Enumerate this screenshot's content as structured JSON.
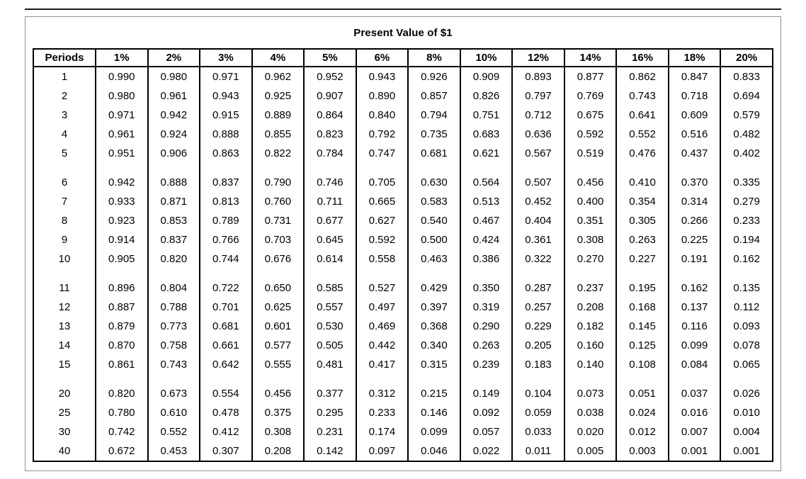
{
  "title": "Present Value of $1",
  "table": {
    "column_headers": [
      "Periods",
      "1%",
      "2%",
      "3%",
      "4%",
      "5%",
      "6%",
      "8%",
      "10%",
      "12%",
      "14%",
      "16%",
      "18%",
      "20%"
    ],
    "row_groups": [
      [
        [
          "1",
          "0.990",
          "0.980",
          "0.971",
          "0.962",
          "0.952",
          "0.943",
          "0.926",
          "0.909",
          "0.893",
          "0.877",
          "0.862",
          "0.847",
          "0.833"
        ],
        [
          "2",
          "0.980",
          "0.961",
          "0.943",
          "0.925",
          "0.907",
          "0.890",
          "0.857",
          "0.826",
          "0.797",
          "0.769",
          "0.743",
          "0.718",
          "0.694"
        ],
        [
          "3",
          "0.971",
          "0.942",
          "0.915",
          "0.889",
          "0.864",
          "0.840",
          "0.794",
          "0.751",
          "0.712",
          "0.675",
          "0.641",
          "0.609",
          "0.579"
        ],
        [
          "4",
          "0.961",
          "0.924",
          "0.888",
          "0.855",
          "0.823",
          "0.792",
          "0.735",
          "0.683",
          "0.636",
          "0.592",
          "0.552",
          "0.516",
          "0.482"
        ],
        [
          "5",
          "0.951",
          "0.906",
          "0.863",
          "0.822",
          "0.784",
          "0.747",
          "0.681",
          "0.621",
          "0.567",
          "0.519",
          "0.476",
          "0.437",
          "0.402"
        ]
      ],
      [
        [
          "6",
          "0.942",
          "0.888",
          "0.837",
          "0.790",
          "0.746",
          "0.705",
          "0.630",
          "0.564",
          "0.507",
          "0.456",
          "0.410",
          "0.370",
          "0.335"
        ],
        [
          "7",
          "0.933",
          "0.871",
          "0.813",
          "0.760",
          "0.711",
          "0.665",
          "0.583",
          "0.513",
          "0.452",
          "0.400",
          "0.354",
          "0.314",
          "0.279"
        ],
        [
          "8",
          "0.923",
          "0.853",
          "0.789",
          "0.731",
          "0.677",
          "0.627",
          "0.540",
          "0.467",
          "0.404",
          "0.351",
          "0.305",
          "0.266",
          "0.233"
        ],
        [
          "9",
          "0.914",
          "0.837",
          "0.766",
          "0.703",
          "0.645",
          "0.592",
          "0.500",
          "0.424",
          "0.361",
          "0.308",
          "0.263",
          "0.225",
          "0.194"
        ],
        [
          "10",
          "0.905",
          "0.820",
          "0.744",
          "0.676",
          "0.614",
          "0.558",
          "0.463",
          "0.386",
          "0.322",
          "0.270",
          "0.227",
          "0.191",
          "0.162"
        ]
      ],
      [
        [
          "11",
          "0.896",
          "0.804",
          "0.722",
          "0.650",
          "0.585",
          "0.527",
          "0.429",
          "0.350",
          "0.287",
          "0.237",
          "0.195",
          "0.162",
          "0.135"
        ],
        [
          "12",
          "0.887",
          "0.788",
          "0.701",
          "0.625",
          "0.557",
          "0.497",
          "0.397",
          "0.319",
          "0.257",
          "0.208",
          "0.168",
          "0.137",
          "0.112"
        ],
        [
          "13",
          "0.879",
          "0.773",
          "0.681",
          "0.601",
          "0.530",
          "0.469",
          "0.368",
          "0.290",
          "0.229",
          "0.182",
          "0.145",
          "0.116",
          "0.093"
        ],
        [
          "14",
          "0.870",
          "0.758",
          "0.661",
          "0.577",
          "0.505",
          "0.442",
          "0.340",
          "0.263",
          "0.205",
          "0.160",
          "0.125",
          "0.099",
          "0.078"
        ],
        [
          "15",
          "0.861",
          "0.743",
          "0.642",
          "0.555",
          "0.481",
          "0.417",
          "0.315",
          "0.239",
          "0.183",
          "0.140",
          "0.108",
          "0.084",
          "0.065"
        ]
      ],
      [
        [
          "20",
          "0.820",
          "0.673",
          "0.554",
          "0.456",
          "0.377",
          "0.312",
          "0.215",
          "0.149",
          "0.104",
          "0.073",
          "0.051",
          "0.037",
          "0.026"
        ],
        [
          "25",
          "0.780",
          "0.610",
          "0.478",
          "0.375",
          "0.295",
          "0.233",
          "0.146",
          "0.092",
          "0.059",
          "0.038",
          "0.024",
          "0.016",
          "0.010"
        ],
        [
          "30",
          "0.742",
          "0.552",
          "0.412",
          "0.308",
          "0.231",
          "0.174",
          "0.099",
          "0.057",
          "0.033",
          "0.020",
          "0.012",
          "0.007",
          "0.004"
        ],
        [
          "40",
          "0.672",
          "0.453",
          "0.307",
          "0.208",
          "0.142",
          "0.097",
          "0.046",
          "0.022",
          "0.011",
          "0.005",
          "0.003",
          "0.001",
          "0.001"
        ]
      ]
    ]
  }
}
